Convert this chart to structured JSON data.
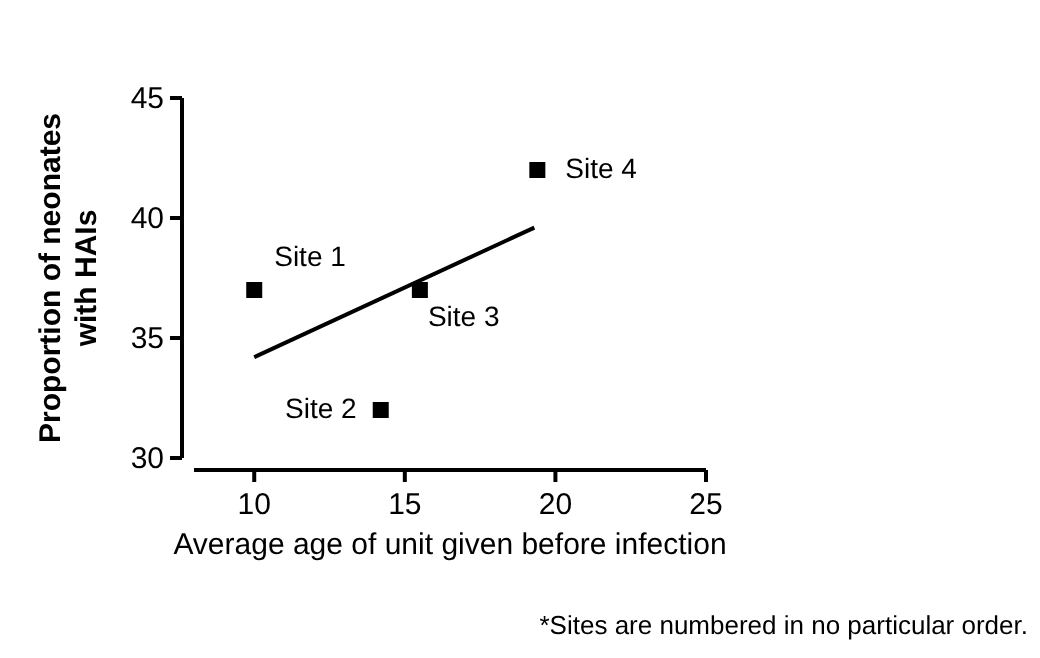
{
  "chart_data": {
    "type": "scatter",
    "xlabel": "Average age of unit given before infection",
    "ylabel": "Proportion of neonates\nwith HAIs",
    "marker": "square",
    "grid": false,
    "xlim": [
      8,
      25
    ],
    "xticks": [
      10,
      15,
      20,
      25
    ],
    "ylim": [
      30,
      45
    ],
    "yticks": [
      30,
      35,
      40,
      45
    ],
    "series": [
      {
        "type": "scatter",
        "color": "#000000",
        "x": [
          10,
          14.2,
          15.5,
          19.4
        ],
        "values": [
          37,
          32,
          37,
          42
        ]
      },
      {
        "type": "line",
        "color": "#000000",
        "x": [
          10,
          19.3
        ],
        "values": [
          34.2,
          39.6
        ],
        "marker": "none"
      }
    ],
    "annotations": [
      {
        "text": "Site 1",
        "x": 10,
        "y": 37
      },
      {
        "text": "Site 2",
        "x": 14.2,
        "y": 32
      },
      {
        "text": "Site 3",
        "x": 15.5,
        "y": 37
      },
      {
        "text": "Site 4",
        "x": 19.4,
        "y": 42
      },
      "*Sites are numbered in no particular order."
    ]
  }
}
